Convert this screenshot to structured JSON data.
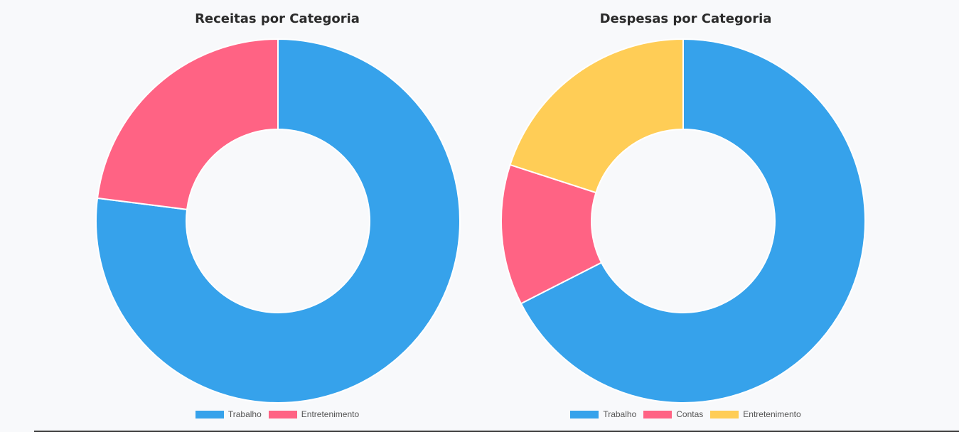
{
  "chart_data": [
    {
      "type": "pie",
      "subtype": "doughnut",
      "title": "Receitas por Categoria",
      "categories": [
        "Trabalho",
        "Entretenimento"
      ],
      "values": [
        77,
        23
      ],
      "colors": [
        "#36a2eb",
        "#ff6384"
      ],
      "legend_position": "bottom"
    },
    {
      "type": "pie",
      "subtype": "doughnut",
      "title": "Despesas por Categoria",
      "categories": [
        "Trabalho",
        "Contas",
        "Entretenimento"
      ],
      "values": [
        67.5,
        12.5,
        20
      ],
      "colors": [
        "#36a2eb",
        "#ff6384",
        "#ffcd56"
      ],
      "legend_position": "bottom"
    }
  ],
  "background_color": "#f8f9fb"
}
